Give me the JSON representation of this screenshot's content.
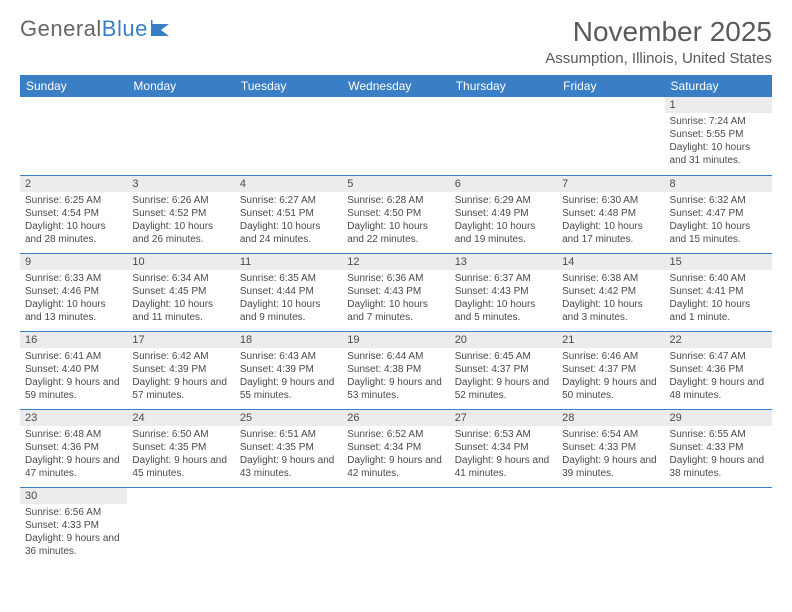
{
  "logo": {
    "part1": "General",
    "part2": "Blue"
  },
  "title": "November 2025",
  "location": "Assumption, Illinois, United States",
  "colors": {
    "header_bg": "#3a7fc5",
    "header_text": "#ffffff",
    "daynum_bg": "#ececec",
    "border": "#3a7fc5",
    "text": "#4a4a4a",
    "logo_gray": "#666666",
    "logo_blue": "#3a7fc5"
  },
  "day_headers": [
    "Sunday",
    "Monday",
    "Tuesday",
    "Wednesday",
    "Thursday",
    "Friday",
    "Saturday"
  ],
  "weeks": [
    [
      {
        "n": "",
        "sr": "",
        "ss": "",
        "dl": ""
      },
      {
        "n": "",
        "sr": "",
        "ss": "",
        "dl": ""
      },
      {
        "n": "",
        "sr": "",
        "ss": "",
        "dl": ""
      },
      {
        "n": "",
        "sr": "",
        "ss": "",
        "dl": ""
      },
      {
        "n": "",
        "sr": "",
        "ss": "",
        "dl": ""
      },
      {
        "n": "",
        "sr": "",
        "ss": "",
        "dl": ""
      },
      {
        "n": "1",
        "sr": "Sunrise: 7:24 AM",
        "ss": "Sunset: 5:55 PM",
        "dl": "Daylight: 10 hours and 31 minutes."
      }
    ],
    [
      {
        "n": "2",
        "sr": "Sunrise: 6:25 AM",
        "ss": "Sunset: 4:54 PM",
        "dl": "Daylight: 10 hours and 28 minutes."
      },
      {
        "n": "3",
        "sr": "Sunrise: 6:26 AM",
        "ss": "Sunset: 4:52 PM",
        "dl": "Daylight: 10 hours and 26 minutes."
      },
      {
        "n": "4",
        "sr": "Sunrise: 6:27 AM",
        "ss": "Sunset: 4:51 PM",
        "dl": "Daylight: 10 hours and 24 minutes."
      },
      {
        "n": "5",
        "sr": "Sunrise: 6:28 AM",
        "ss": "Sunset: 4:50 PM",
        "dl": "Daylight: 10 hours and 22 minutes."
      },
      {
        "n": "6",
        "sr": "Sunrise: 6:29 AM",
        "ss": "Sunset: 4:49 PM",
        "dl": "Daylight: 10 hours and 19 minutes."
      },
      {
        "n": "7",
        "sr": "Sunrise: 6:30 AM",
        "ss": "Sunset: 4:48 PM",
        "dl": "Daylight: 10 hours and 17 minutes."
      },
      {
        "n": "8",
        "sr": "Sunrise: 6:32 AM",
        "ss": "Sunset: 4:47 PM",
        "dl": "Daylight: 10 hours and 15 minutes."
      }
    ],
    [
      {
        "n": "9",
        "sr": "Sunrise: 6:33 AM",
        "ss": "Sunset: 4:46 PM",
        "dl": "Daylight: 10 hours and 13 minutes."
      },
      {
        "n": "10",
        "sr": "Sunrise: 6:34 AM",
        "ss": "Sunset: 4:45 PM",
        "dl": "Daylight: 10 hours and 11 minutes."
      },
      {
        "n": "11",
        "sr": "Sunrise: 6:35 AM",
        "ss": "Sunset: 4:44 PM",
        "dl": "Daylight: 10 hours and 9 minutes."
      },
      {
        "n": "12",
        "sr": "Sunrise: 6:36 AM",
        "ss": "Sunset: 4:43 PM",
        "dl": "Daylight: 10 hours and 7 minutes."
      },
      {
        "n": "13",
        "sr": "Sunrise: 6:37 AM",
        "ss": "Sunset: 4:43 PM",
        "dl": "Daylight: 10 hours and 5 minutes."
      },
      {
        "n": "14",
        "sr": "Sunrise: 6:38 AM",
        "ss": "Sunset: 4:42 PM",
        "dl": "Daylight: 10 hours and 3 minutes."
      },
      {
        "n": "15",
        "sr": "Sunrise: 6:40 AM",
        "ss": "Sunset: 4:41 PM",
        "dl": "Daylight: 10 hours and 1 minute."
      }
    ],
    [
      {
        "n": "16",
        "sr": "Sunrise: 6:41 AM",
        "ss": "Sunset: 4:40 PM",
        "dl": "Daylight: 9 hours and 59 minutes."
      },
      {
        "n": "17",
        "sr": "Sunrise: 6:42 AM",
        "ss": "Sunset: 4:39 PM",
        "dl": "Daylight: 9 hours and 57 minutes."
      },
      {
        "n": "18",
        "sr": "Sunrise: 6:43 AM",
        "ss": "Sunset: 4:39 PM",
        "dl": "Daylight: 9 hours and 55 minutes."
      },
      {
        "n": "19",
        "sr": "Sunrise: 6:44 AM",
        "ss": "Sunset: 4:38 PM",
        "dl": "Daylight: 9 hours and 53 minutes."
      },
      {
        "n": "20",
        "sr": "Sunrise: 6:45 AM",
        "ss": "Sunset: 4:37 PM",
        "dl": "Daylight: 9 hours and 52 minutes."
      },
      {
        "n": "21",
        "sr": "Sunrise: 6:46 AM",
        "ss": "Sunset: 4:37 PM",
        "dl": "Daylight: 9 hours and 50 minutes."
      },
      {
        "n": "22",
        "sr": "Sunrise: 6:47 AM",
        "ss": "Sunset: 4:36 PM",
        "dl": "Daylight: 9 hours and 48 minutes."
      }
    ],
    [
      {
        "n": "23",
        "sr": "Sunrise: 6:48 AM",
        "ss": "Sunset: 4:36 PM",
        "dl": "Daylight: 9 hours and 47 minutes."
      },
      {
        "n": "24",
        "sr": "Sunrise: 6:50 AM",
        "ss": "Sunset: 4:35 PM",
        "dl": "Daylight: 9 hours and 45 minutes."
      },
      {
        "n": "25",
        "sr": "Sunrise: 6:51 AM",
        "ss": "Sunset: 4:35 PM",
        "dl": "Daylight: 9 hours and 43 minutes."
      },
      {
        "n": "26",
        "sr": "Sunrise: 6:52 AM",
        "ss": "Sunset: 4:34 PM",
        "dl": "Daylight: 9 hours and 42 minutes."
      },
      {
        "n": "27",
        "sr": "Sunrise: 6:53 AM",
        "ss": "Sunset: 4:34 PM",
        "dl": "Daylight: 9 hours and 41 minutes."
      },
      {
        "n": "28",
        "sr": "Sunrise: 6:54 AM",
        "ss": "Sunset: 4:33 PM",
        "dl": "Daylight: 9 hours and 39 minutes."
      },
      {
        "n": "29",
        "sr": "Sunrise: 6:55 AM",
        "ss": "Sunset: 4:33 PM",
        "dl": "Daylight: 9 hours and 38 minutes."
      }
    ],
    [
      {
        "n": "30",
        "sr": "Sunrise: 6:56 AM",
        "ss": "Sunset: 4:33 PM",
        "dl": "Daylight: 9 hours and 36 minutes."
      },
      {
        "n": "",
        "sr": "",
        "ss": "",
        "dl": ""
      },
      {
        "n": "",
        "sr": "",
        "ss": "",
        "dl": ""
      },
      {
        "n": "",
        "sr": "",
        "ss": "",
        "dl": ""
      },
      {
        "n": "",
        "sr": "",
        "ss": "",
        "dl": ""
      },
      {
        "n": "",
        "sr": "",
        "ss": "",
        "dl": ""
      },
      {
        "n": "",
        "sr": "",
        "ss": "",
        "dl": ""
      }
    ]
  ]
}
